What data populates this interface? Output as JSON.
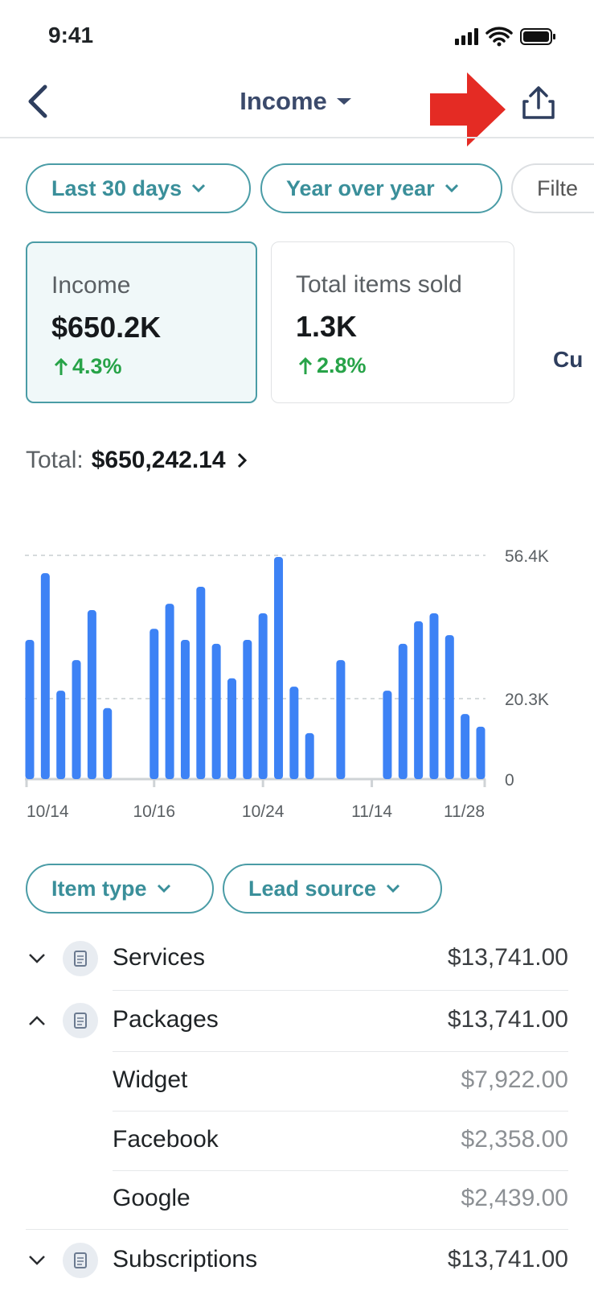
{
  "status_bar": {
    "time": "9:41"
  },
  "header": {
    "title": "Income"
  },
  "filters": [
    "Last 30 days",
    "Year over year",
    "Filte"
  ],
  "cards": [
    {
      "label": "Income",
      "value": "$650.2K",
      "change": "4.3%"
    },
    {
      "label": "Total items sold",
      "value": "1.3K",
      "change": "2.8%"
    }
  ],
  "partial_card": "Cu",
  "total": {
    "label": "Total:",
    "value": "$650,242.14"
  },
  "chart_data": {
    "type": "bar",
    "categories": [
      "10/14",
      null,
      null,
      null,
      null,
      null,
      null,
      null,
      "10/16",
      null,
      null,
      null,
      null,
      null,
      null,
      "10/24",
      null,
      null,
      null,
      null,
      null,
      null,
      "11/14",
      null,
      null,
      null,
      null,
      null,
      null,
      "11/28"
    ],
    "values": [
      35100,
      51900,
      22300,
      30000,
      42600,
      17900,
      null,
      null,
      37900,
      44200,
      35100,
      48500,
      34100,
      25400,
      35100,
      41800,
      56000,
      23300,
      11600,
      null,
      30000,
      null,
      null,
      22300,
      34100,
      39800,
      41800,
      36300,
      16400,
      13200
    ],
    "color": "#3d82f5",
    "ylim": [
      0,
      56400
    ],
    "yticks": [
      0,
      {
        "value": 20300,
        "label": "20.3K"
      },
      {
        "value": 56400,
        "label": "56.4K"
      }
    ],
    "grid": true
  },
  "breakdown_filters": [
    "Item type",
    "Lead source"
  ],
  "rows": [
    {
      "name": "Services",
      "amount": "$13,741.00"
    },
    {
      "name": "Packages",
      "amount": "$13,741.00"
    },
    {
      "name": "Widget",
      "amount": "$7,922.00"
    },
    {
      "name": "Facebook",
      "amount": "$2,358.00"
    },
    {
      "name": "Google",
      "amount": "$2,439.00"
    },
    {
      "name": "Subscriptions",
      "amount": "$13,741.00"
    }
  ]
}
